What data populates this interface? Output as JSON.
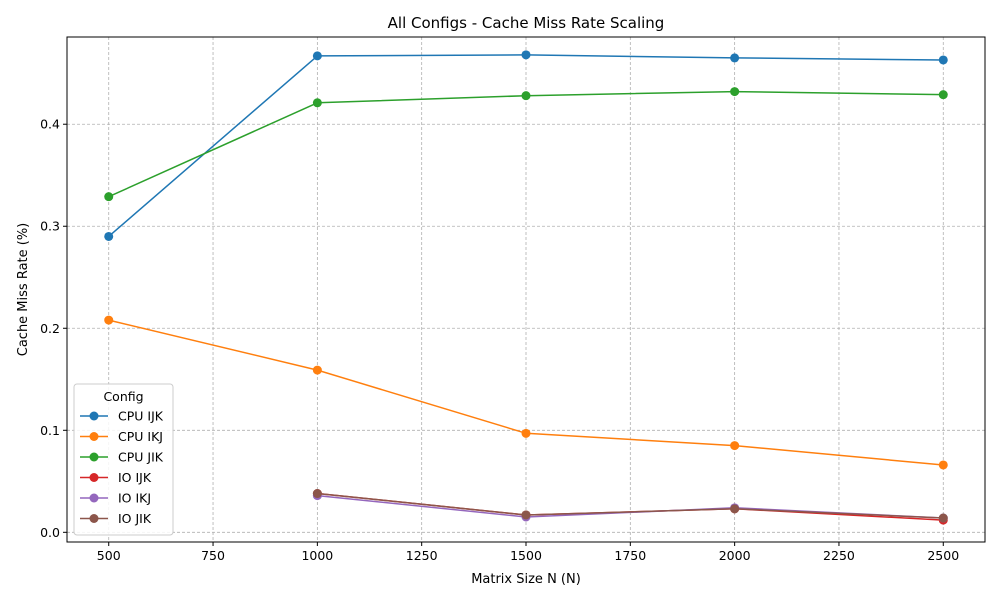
{
  "chart_data": {
    "type": "line",
    "title": "All Configs - Cache Miss Rate Scaling",
    "xlabel": "Matrix Size N (N)",
    "ylabel": "Cache Miss Rate (%)",
    "xlim": [
      400,
      2600
    ],
    "ylim": [
      -0.0095,
      0.4855
    ],
    "xticks": [
      500,
      750,
      1000,
      1250,
      1500,
      1750,
      2000,
      2250,
      2500
    ],
    "yticks": [
      0.0,
      0.1,
      0.2,
      0.3,
      0.4
    ],
    "ytick_labels": [
      "0.0",
      "0.1",
      "0.2",
      "0.3",
      "0.4"
    ],
    "grid": true,
    "legend": {
      "title": "Config",
      "placement": "lower-left"
    },
    "series": [
      {
        "name": "CPU IJK",
        "color": "#1f77b4",
        "x": [
          500,
          1000,
          1500,
          2000,
          2500
        ],
        "y": [
          0.29,
          0.467,
          0.468,
          0.465,
          0.463
        ]
      },
      {
        "name": "CPU IKJ",
        "color": "#ff7f0e",
        "x": [
          500,
          1000,
          1500,
          2000,
          2500
        ],
        "y": [
          0.208,
          0.159,
          0.097,
          0.085,
          0.066
        ]
      },
      {
        "name": "CPU JIK",
        "color": "#2ca02c",
        "x": [
          500,
          1000,
          1500,
          2000,
          2500
        ],
        "y": [
          0.329,
          0.421,
          0.428,
          0.432,
          0.429
        ]
      },
      {
        "name": "IO IJK",
        "color": "#d62728",
        "x": [
          1000,
          1500,
          2000,
          2500
        ],
        "y": [
          0.038,
          0.017,
          0.023,
          0.012
        ]
      },
      {
        "name": "IO IKJ",
        "color": "#9467bd",
        "x": [
          1000,
          1500,
          2000,
          2500
        ],
        "y": [
          0.036,
          0.015,
          0.024,
          0.014
        ]
      },
      {
        "name": "IO JIK",
        "color": "#8c564b",
        "x": [
          1000,
          1500,
          2000,
          2500
        ],
        "y": [
          0.038,
          0.017,
          0.023,
          0.014
        ]
      }
    ]
  }
}
